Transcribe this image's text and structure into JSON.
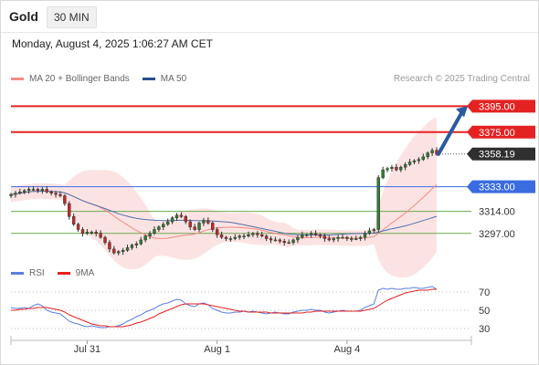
{
  "header": {
    "instrument": "Gold",
    "timeframe": "30 MIN",
    "datetime": "Monday, August 4, 2025 1:06:27 AM CET"
  },
  "legend": {
    "bollinger": "MA 20 + Bollinger Bands",
    "ma50": "MA 50",
    "rsi": "RSI",
    "ma9": "9MA"
  },
  "credit": "Research © 2025 Trading Central",
  "colors": {
    "resistance": "#e52222",
    "support": "#3b6be0",
    "support_green": "#6aa84f",
    "current": "#2f2f2f",
    "bull": "#2e7d32",
    "bear": "#c62828",
    "bollinger_fill": "#fbdede",
    "ma20": "#f28b82",
    "ma50": "#4f6fa8",
    "arrow": "#2a5aa0",
    "rsi": "#5b7fe0",
    "rsi_ma": "#e52222"
  },
  "chart_data": {
    "type": "candlestick",
    "price_axis": {
      "ylim": [
        3280,
        3410
      ],
      "levels": [
        {
          "value": 3395.0,
          "label": "3395.00",
          "kind": "resistance"
        },
        {
          "value": 3375.0,
          "label": "3375.00",
          "kind": "resistance"
        },
        {
          "value": 3358.19,
          "label": "3358.19",
          "kind": "current"
        },
        {
          "value": 3333.0,
          "label": "3333.00",
          "kind": "support"
        },
        {
          "value": 3314.0,
          "label": "3314.00",
          "kind": "support_green"
        },
        {
          "value": 3297.0,
          "label": "3297.00",
          "kind": "support_green"
        }
      ]
    },
    "x_ticks": [
      "Jul 31",
      "Aug 1",
      "Aug 4"
    ],
    "x_tick_index": [
      17,
      46,
      75
    ],
    "close": [
      3327,
      3328,
      3329,
      3330,
      3331,
      3331,
      3330,
      3331,
      3329,
      3328,
      3327,
      3326,
      3320,
      3310,
      3304,
      3300,
      3297,
      3298,
      3298,
      3297,
      3294,
      3290,
      3285,
      3282,
      3283,
      3284,
      3286,
      3288,
      3289,
      3292,
      3295,
      3297,
      3300,
      3302,
      3304,
      3306,
      3309,
      3311,
      3310,
      3306,
      3302,
      3300,
      3305,
      3307,
      3305,
      3300,
      3296,
      3294,
      3293,
      3293,
      3294,
      3295,
      3295,
      3296,
      3297,
      3296,
      3295,
      3293,
      3292,
      3292,
      3291,
      3290,
      3290,
      3292,
      3294,
      3296,
      3296,
      3297,
      3296,
      3295,
      3293,
      3292,
      3293,
      3294,
      3294,
      3293,
      3293,
      3293,
      3294,
      3297,
      3299,
      3300,
      3340,
      3346,
      3347,
      3348,
      3346,
      3348,
      3350,
      3352,
      3353,
      3354,
      3356,
      3359,
      3361,
      3358
    ],
    "forecast_arrow": {
      "from": 3358.19,
      "to": 3395.0
    },
    "rsi": {
      "label": "RSI",
      "ma_label": "9MA",
      "ylim": [
        20,
        80
      ],
      "ticks": [
        70,
        50,
        30
      ],
      "values": [
        53,
        52,
        52,
        53,
        52,
        55,
        57,
        55,
        50,
        48,
        47,
        46,
        42,
        38,
        36,
        35,
        33,
        32,
        33,
        32,
        31,
        31,
        32,
        32,
        33,
        35,
        38,
        40,
        43,
        45,
        48,
        50,
        52,
        55,
        57,
        58,
        60,
        62,
        61,
        57,
        55,
        54,
        57,
        58,
        56,
        52,
        50,
        48,
        47,
        47,
        48,
        48,
        49,
        48,
        49,
        48,
        47,
        46,
        47,
        48,
        47,
        46,
        46,
        48,
        49,
        50,
        50,
        51,
        50,
        50,
        48,
        47,
        48,
        49,
        50,
        49,
        49,
        49,
        50,
        53,
        55,
        57,
        72,
        74,
        73,
        74,
        73,
        73,
        74,
        74,
        75,
        74,
        74,
        75,
        76,
        73
      ],
      "ma_values": [
        50,
        50,
        51,
        51,
        52,
        52,
        53,
        53,
        53,
        52,
        51,
        50,
        48,
        45,
        43,
        41,
        39,
        37,
        35,
        34,
        33,
        33,
        32,
        32,
        32,
        32,
        33,
        34,
        36,
        37,
        39,
        41,
        43,
        46,
        48,
        50,
        52,
        54,
        56,
        57,
        57,
        57,
        57,
        57,
        56,
        55,
        54,
        53,
        52,
        51,
        50,
        49,
        49,
        48,
        48,
        48,
        48,
        48,
        47,
        47,
        47,
        47,
        47,
        47,
        47,
        47,
        48,
        48,
        49,
        49,
        49,
        49,
        49,
        49,
        49,
        49,
        49,
        49,
        49,
        50,
        51,
        52,
        55,
        58,
        61,
        63,
        65,
        67,
        69,
        70,
        71,
        72,
        72,
        72,
        73,
        73
      ]
    }
  }
}
